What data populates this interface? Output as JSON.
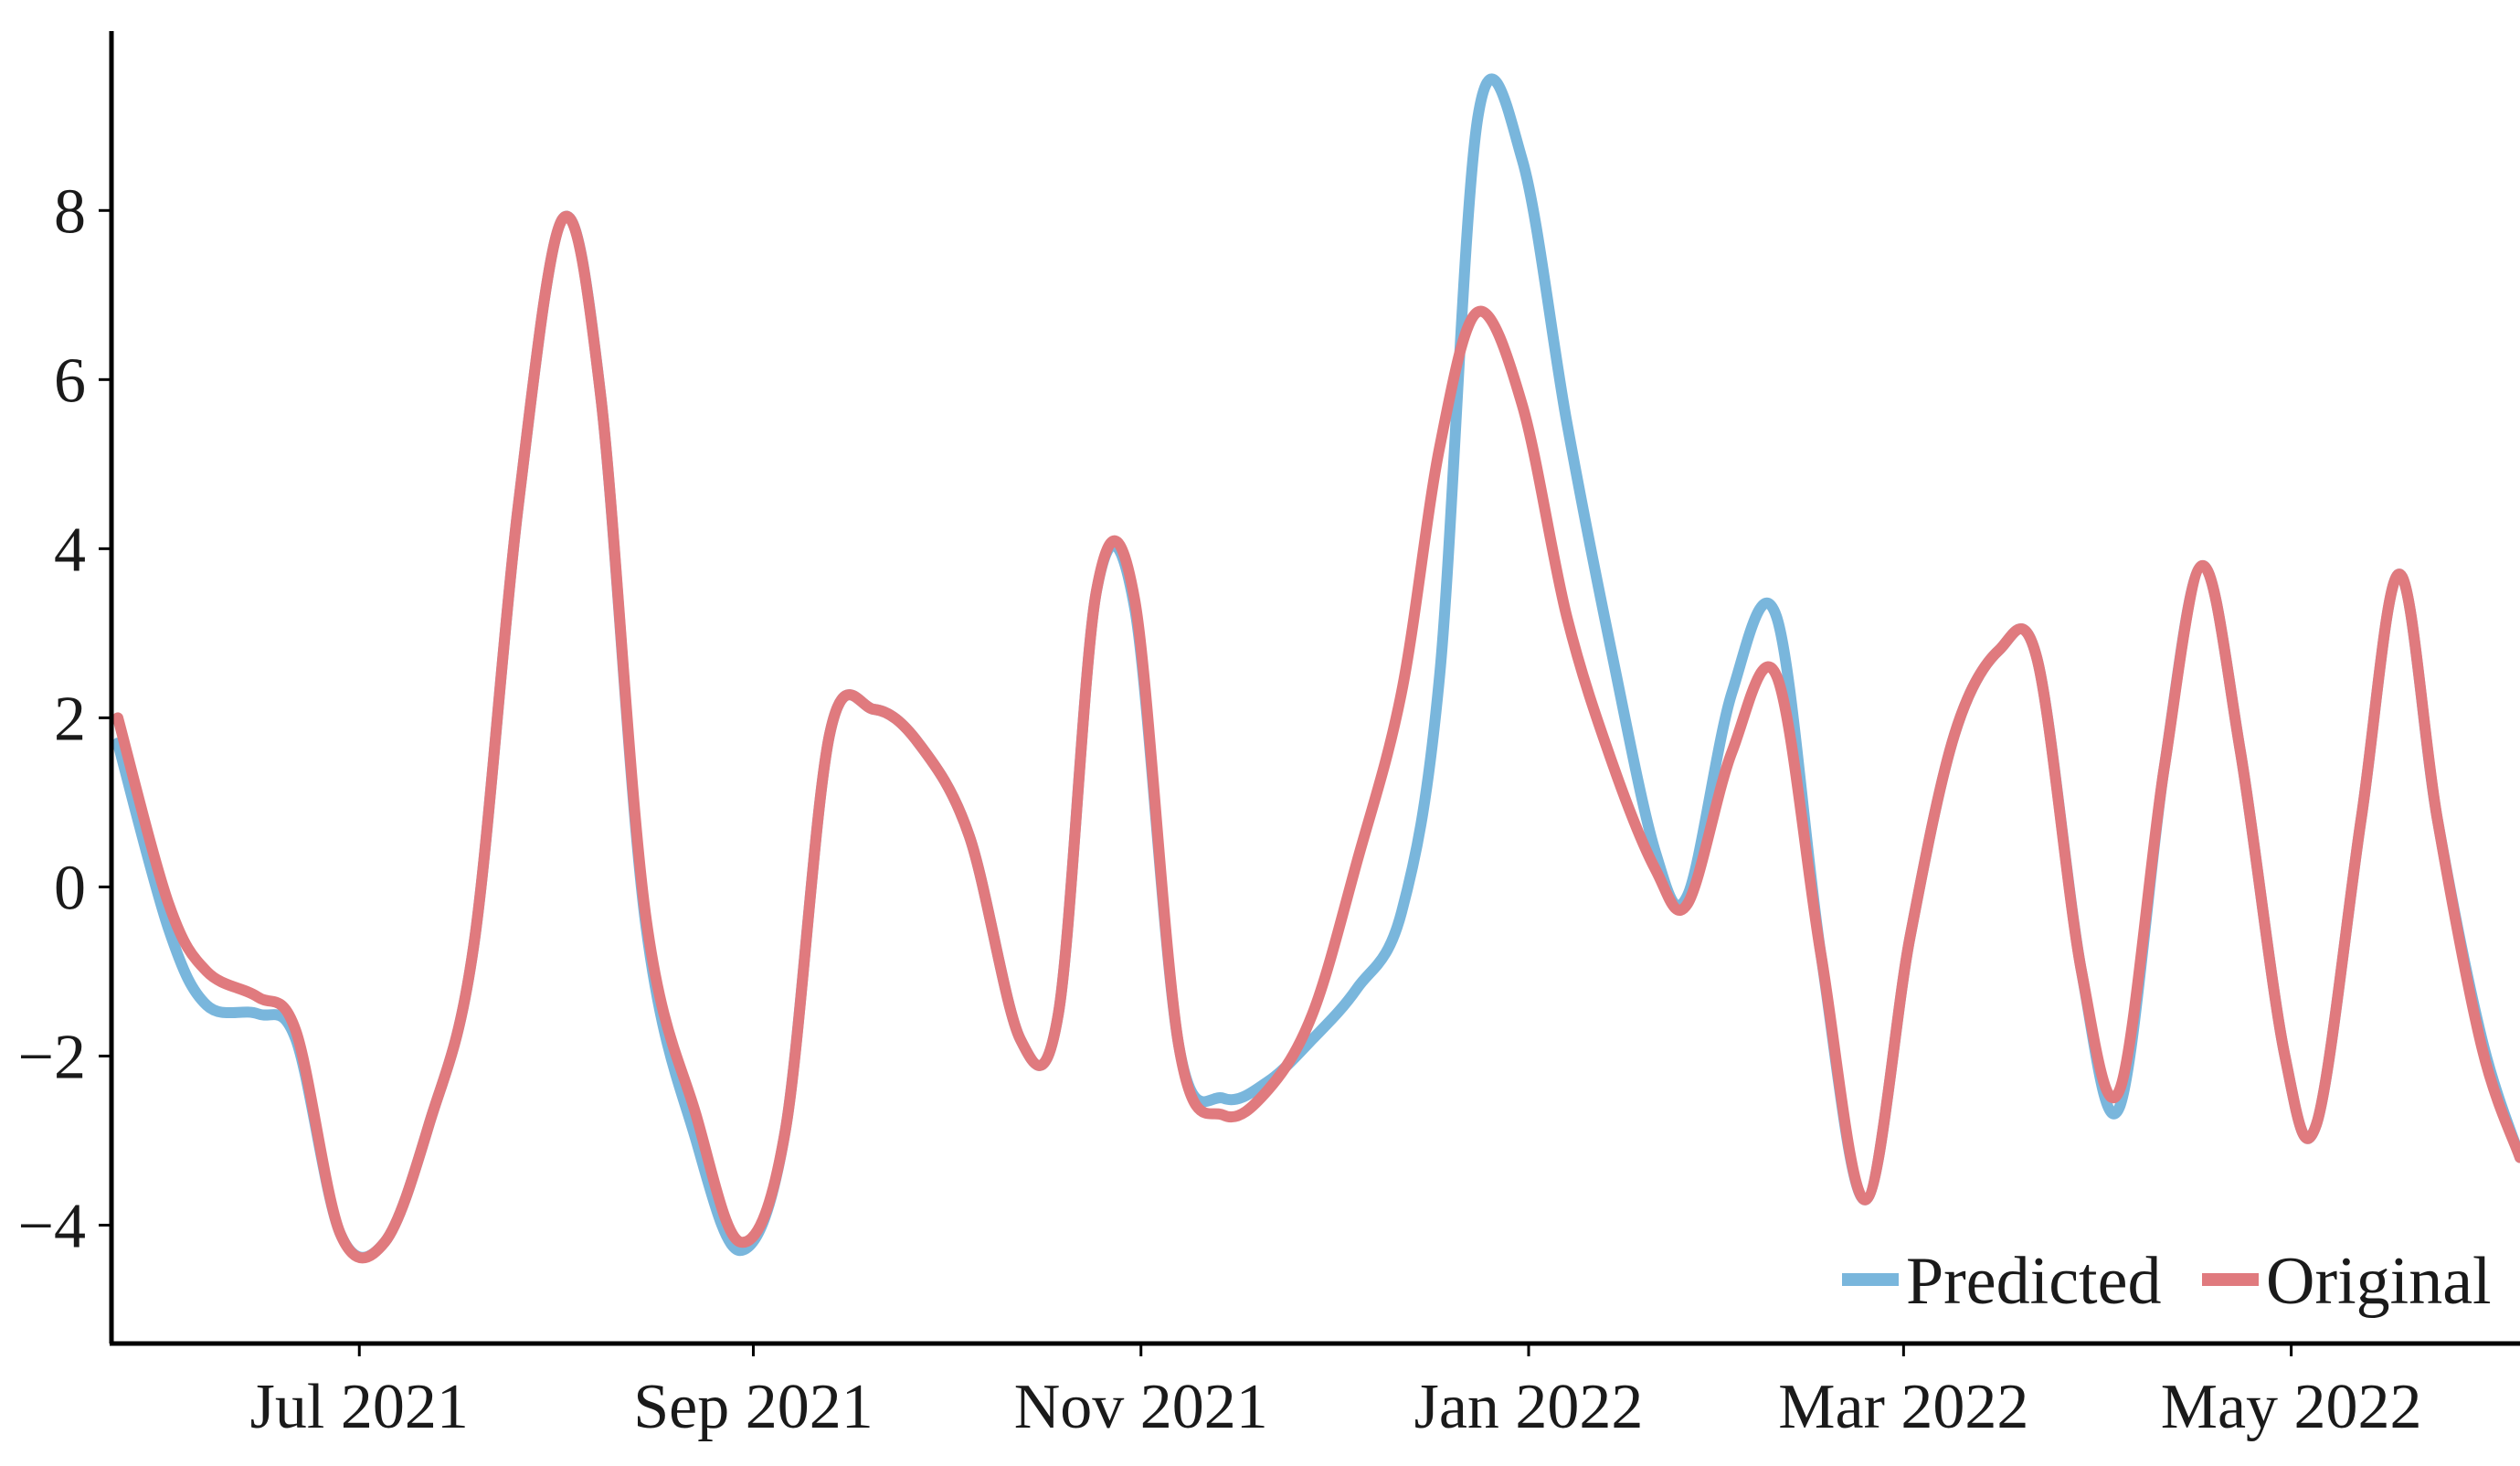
{
  "chart_data": {
    "type": "line",
    "title": "",
    "xlabel": "",
    "ylabel": "",
    "x_ticks": [
      "Jul 2021",
      "Sep 2021",
      "Nov 2021",
      "Jan 2022",
      "Mar 2022",
      "May 2022"
    ],
    "x_tick_dates": [
      "2021-07-01",
      "2021-09-01",
      "2021-11-01",
      "2022-01-01",
      "2022-03-01",
      "2022-05-01"
    ],
    "xlim": [
      "2021-05-23",
      "2022-06-06"
    ],
    "y_ticks": [
      -4,
      -2,
      0,
      2,
      4,
      6,
      8
    ],
    "y_tick_labels": [
      "−4",
      "−2",
      "0",
      "2",
      "4",
      "6",
      "8"
    ],
    "ylim": [
      -5.4,
      10.1
    ],
    "grid": false,
    "legend_position": "bottom-right",
    "colors": {
      "predicted": "#79b6dc",
      "original": "#e07a7e",
      "axis": "#000000"
    },
    "series": [
      {
        "name": "Predicted",
        "points": [
          [
            "2021-05-24",
            1.7
          ],
          [
            "2021-06-01",
            -0.5
          ],
          [
            "2021-06-07",
            -1.4
          ],
          [
            "2021-06-15",
            -1.5
          ],
          [
            "2021-06-21",
            -1.8
          ],
          [
            "2021-06-28",
            -4.1
          ],
          [
            "2021-07-05",
            -4.2
          ],
          [
            "2021-07-12",
            -2.8
          ],
          [
            "2021-07-19",
            -0.7
          ],
          [
            "2021-07-26",
            4.5
          ],
          [
            "2021-08-02",
            7.9
          ],
          [
            "2021-08-08",
            5.8
          ],
          [
            "2021-08-15",
            -0.4
          ],
          [
            "2021-08-23",
            -3.0
          ],
          [
            "2021-08-30",
            -4.3
          ],
          [
            "2021-09-06",
            -2.9
          ],
          [
            "2021-09-13",
            1.8
          ],
          [
            "2021-09-20",
            2.1
          ],
          [
            "2021-09-27",
            1.7
          ],
          [
            "2021-10-05",
            0.6
          ],
          [
            "2021-10-13",
            -1.8
          ],
          [
            "2021-10-19",
            -1.5
          ],
          [
            "2021-10-25",
            3.5
          ],
          [
            "2021-10-31",
            3.3
          ],
          [
            "2021-11-07",
            -1.9
          ],
          [
            "2021-11-14",
            -2.5
          ],
          [
            "2021-11-21",
            -2.3
          ],
          [
            "2021-11-28",
            -1.8
          ],
          [
            "2021-12-05",
            -1.2
          ],
          [
            "2021-12-12",
            -0.3
          ],
          [
            "2021-12-18",
            2.5
          ],
          [
            "2021-12-24",
            9.1
          ],
          [
            "2021-12-31",
            8.6
          ],
          [
            "2022-01-07",
            5.5
          ],
          [
            "2022-01-14",
            2.8
          ],
          [
            "2022-01-21",
            0.4
          ],
          [
            "2022-01-26",
            -0.1
          ],
          [
            "2022-02-02",
            2.3
          ],
          [
            "2022-02-09",
            3.2
          ],
          [
            "2022-02-16",
            -0.8
          ],
          [
            "2022-02-23",
            -3.7
          ],
          [
            "2022-03-02",
            -0.6
          ],
          [
            "2022-03-09",
            1.8
          ],
          [
            "2022-03-16",
            2.8
          ],
          [
            "2022-03-22",
            2.7
          ],
          [
            "2022-03-29",
            -1.0
          ],
          [
            "2022-04-04",
            -2.6
          ],
          [
            "2022-04-11",
            1.4
          ],
          [
            "2022-04-17",
            3.8
          ],
          [
            "2022-04-23",
            1.6
          ],
          [
            "2022-04-30",
            -2.0
          ],
          [
            "2022-05-05",
            -2.8
          ],
          [
            "2022-05-12",
            0.8
          ],
          [
            "2022-05-18",
            3.7
          ],
          [
            "2022-05-24",
            0.8
          ],
          [
            "2022-05-31",
            -1.8
          ],
          [
            "2022-06-06",
            -3.2
          ]
        ]
      },
      {
        "name": "Original",
        "points": [
          [
            "2021-05-24",
            2.0
          ],
          [
            "2021-06-01",
            -0.2
          ],
          [
            "2021-06-07",
            -1.0
          ],
          [
            "2021-06-15",
            -1.3
          ],
          [
            "2021-06-21",
            -1.7
          ],
          [
            "2021-06-28",
            -4.1
          ],
          [
            "2021-07-05",
            -4.2
          ],
          [
            "2021-07-12",
            -2.8
          ],
          [
            "2021-07-19",
            -0.7
          ],
          [
            "2021-07-26",
            4.5
          ],
          [
            "2021-08-02",
            7.9
          ],
          [
            "2021-08-08",
            5.8
          ],
          [
            "2021-08-15",
            -0.3
          ],
          [
            "2021-08-23",
            -2.7
          ],
          [
            "2021-08-30",
            -4.2
          ],
          [
            "2021-09-06",
            -2.9
          ],
          [
            "2021-09-13",
            1.8
          ],
          [
            "2021-09-20",
            2.1
          ],
          [
            "2021-09-27",
            1.7
          ],
          [
            "2021-10-05",
            0.6
          ],
          [
            "2021-10-13",
            -1.8
          ],
          [
            "2021-10-19",
            -1.5
          ],
          [
            "2021-10-25",
            3.5
          ],
          [
            "2021-10-31",
            3.4
          ],
          [
            "2021-11-07",
            -1.9
          ],
          [
            "2021-11-14",
            -2.7
          ],
          [
            "2021-11-21",
            -2.4
          ],
          [
            "2021-11-28",
            -1.5
          ],
          [
            "2021-12-05",
            0.3
          ],
          [
            "2021-12-12",
            2.3
          ],
          [
            "2021-12-18",
            5.2
          ],
          [
            "2021-12-24",
            6.8
          ],
          [
            "2021-12-31",
            5.7
          ],
          [
            "2022-01-07",
            3.2
          ],
          [
            "2022-01-14",
            1.5
          ],
          [
            "2022-01-21",
            0.2
          ],
          [
            "2022-01-26",
            -0.2
          ],
          [
            "2022-02-02",
            1.6
          ],
          [
            "2022-02-09",
            2.5
          ],
          [
            "2022-02-16",
            -0.8
          ],
          [
            "2022-02-23",
            -3.7
          ],
          [
            "2022-03-02",
            -0.6
          ],
          [
            "2022-03-09",
            1.8
          ],
          [
            "2022-03-16",
            2.8
          ],
          [
            "2022-03-22",
            2.7
          ],
          [
            "2022-03-29",
            -1.0
          ],
          [
            "2022-04-04",
            -2.4
          ],
          [
            "2022-04-11",
            1.4
          ],
          [
            "2022-04-17",
            3.8
          ],
          [
            "2022-04-23",
            1.6
          ],
          [
            "2022-04-30",
            -2.0
          ],
          [
            "2022-05-05",
            -2.8
          ],
          [
            "2022-05-12",
            0.8
          ],
          [
            "2022-05-18",
            3.7
          ],
          [
            "2022-05-24",
            0.8
          ],
          [
            "2022-05-31",
            -1.9
          ],
          [
            "2022-06-06",
            -3.2
          ]
        ]
      }
    ]
  }
}
